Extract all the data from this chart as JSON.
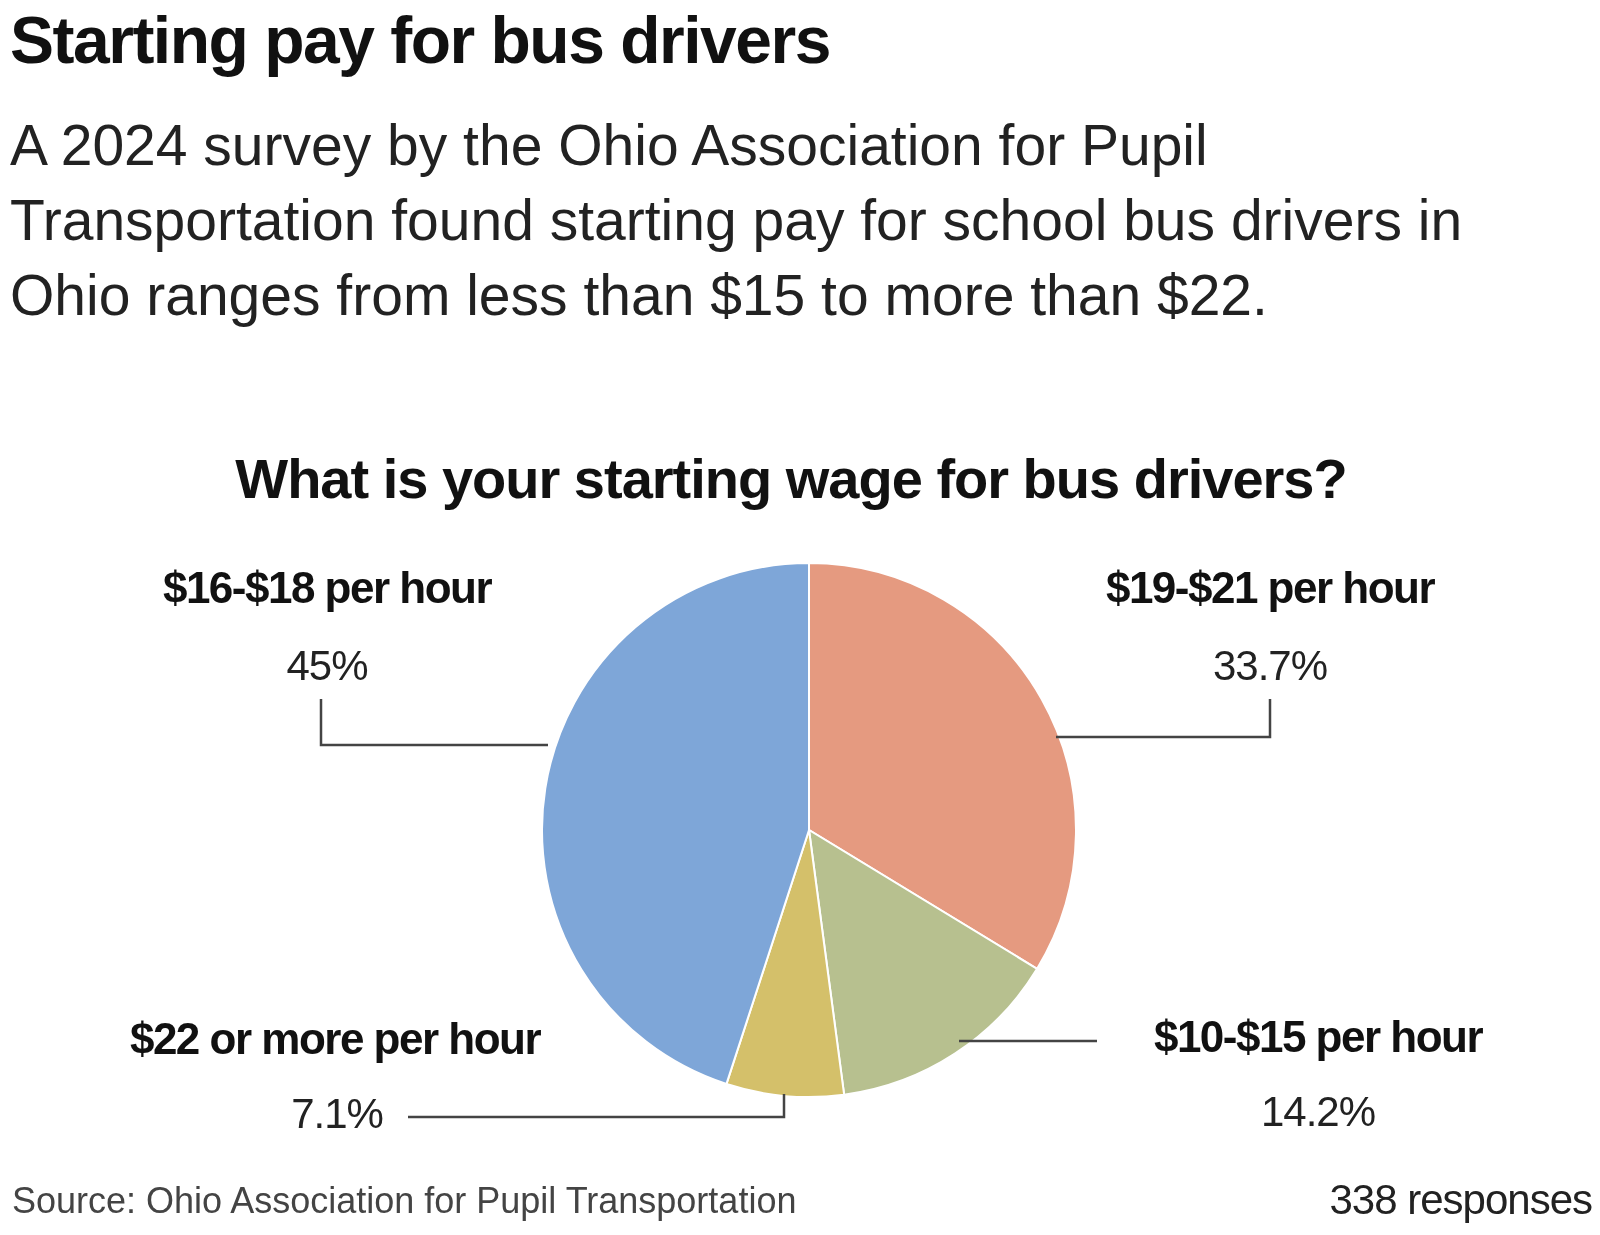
{
  "chart_data": {
    "type": "pie",
    "title": "Starting pay for bus drivers",
    "subtitle": "A 2024 survey by the Ohio Association for Pupil Transportation found starting pay for school bus drivers in Ohio ranges from less than $15 to more than $22.",
    "annotations": [
      "What is your starting wage for bus drivers?",
      "Source: Ohio Association for Pupil Transportation",
      "338 responses"
    ],
    "categories": [
      "$19-$21 per hour",
      "$10-$15 per hour",
      "$22 or more per hour",
      "$16-$18 per hour"
    ],
    "values": [
      33.7,
      14.2,
      7.1,
      45
    ],
    "colors": [
      "#e59a80",
      "#b7c08f",
      "#d4c06a",
      "#7ea6d8"
    ],
    "value_labels": [
      "33.7%",
      "14.2%",
      "7.1%",
      "45%"
    ]
  }
}
